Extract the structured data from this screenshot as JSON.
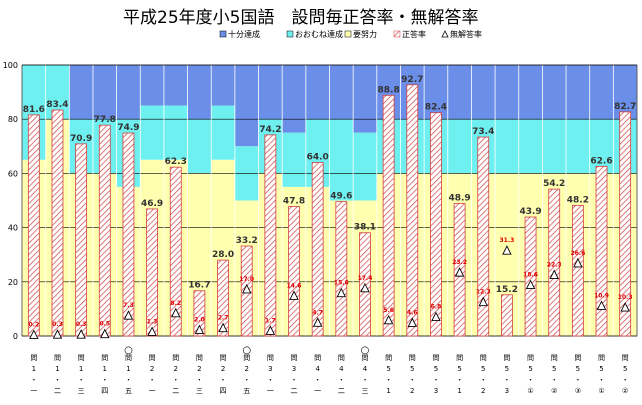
{
  "chart_data": {
    "type": "bar",
    "title": "平成25年度小5国語　設問毎正答率・無解答率",
    "ylim": [
      0,
      100
    ],
    "yticks": [
      0,
      20,
      40,
      60,
      80,
      100
    ],
    "grid": true,
    "legend_position": "top-right",
    "legend": [
      {
        "name": "十分達成",
        "color": "#6b8fe8",
        "marker": "square"
      },
      {
        "name": "おおむね達成",
        "color": "#6ff0f0",
        "marker": "square"
      },
      {
        "name": "要努力",
        "color": "#ffffb0",
        "marker": "square"
      },
      {
        "name": "正答率",
        "color": "#d04040",
        "marker": "hatch"
      },
      {
        "name": "無解答率",
        "color": "#000000",
        "marker": "triangle"
      }
    ],
    "categories": [
      [
        "問",
        "1",
        "・",
        "一"
      ],
      [
        "問",
        "1",
        "・",
        "二"
      ],
      [
        "問",
        "1",
        "・",
        "三"
      ],
      [
        "問",
        "1",
        "・",
        "四"
      ],
      [
        "問",
        "1",
        "・",
        "五"
      ],
      [
        "問",
        "2",
        "・",
        "一"
      ],
      [
        "問",
        "2",
        "・",
        "二"
      ],
      [
        "問",
        "2",
        "・",
        "三"
      ],
      [
        "問",
        "2",
        "・",
        "四"
      ],
      [
        "問",
        "2",
        "・",
        "五"
      ],
      [
        "問",
        "3",
        "・",
        "一"
      ],
      [
        "問",
        "3",
        "・",
        "二"
      ],
      [
        "問",
        "4",
        "・",
        "一"
      ],
      [
        "問",
        "4",
        "・",
        "二"
      ],
      [
        "問",
        "4",
        "・",
        "三"
      ],
      [
        "問",
        "5",
        "・",
        "1"
      ],
      [
        "問",
        "5",
        "・",
        "2"
      ],
      [
        "問",
        "5",
        "・",
        "3"
      ],
      [
        "問",
        "5",
        "・",
        "1"
      ],
      [
        "問",
        "5",
        "・",
        "2"
      ],
      [
        "問",
        "5",
        "・",
        "3"
      ],
      [
        "問",
        "5",
        "・",
        "①"
      ],
      [
        "問",
        "5",
        "・",
        "②"
      ],
      [
        "問",
        "5",
        "・",
        "③"
      ],
      [
        "問",
        "5",
        "・",
        "①"
      ],
      [
        "問",
        "5",
        "・",
        "②"
      ]
    ],
    "circle_marks": [
      4,
      9,
      14
    ],
    "circle_symbol": "○",
    "bands": {
      "yodoryoku_top": [
        65,
        80,
        60,
        60,
        55,
        65,
        65,
        60,
        65,
        50,
        60,
        55,
        55,
        50,
        50,
        60,
        60,
        60,
        60,
        60,
        60,
        60,
        60,
        60,
        60,
        60
      ],
      "oomune_top": [
        100,
        100,
        80,
        80,
        80,
        85,
        85,
        80,
        85,
        70,
        80,
        75,
        80,
        80,
        75,
        80,
        80,
        80,
        80,
        80,
        80,
        80,
        80,
        80,
        80,
        80
      ]
    },
    "series": [
      {
        "name": "正答率",
        "values": [
          81.6,
          83.4,
          70.9,
          77.8,
          74.9,
          46.9,
          62.3,
          16.7,
          28.0,
          33.2,
          74.2,
          47.8,
          64.0,
          49.6,
          38.1,
          88.8,
          92.7,
          82.4,
          48.9,
          73.4,
          15.2,
          43.9,
          54.2,
          48.2,
          62.6,
          82.7
        ],
        "labels": [
          "81.6",
          "83.4",
          "70.9",
          "77.8",
          "74.9",
          "46.9",
          "62.3",
          "16.7",
          "28.0",
          "33.2",
          "74.2",
          "47.8",
          "64.0",
          "49.6",
          "38.1",
          "88.8",
          "92.7",
          "82.4",
          "48.9",
          "73.4",
          "15.2",
          "43.9",
          "54.2",
          "48.2",
          "62.6",
          "82.7"
        ]
      },
      {
        "name": "無解答率",
        "values": [
          0.2,
          0.3,
          0.3,
          0.5,
          7.3,
          1.3,
          8.2,
          2.0,
          2.7,
          17.0,
          1.7,
          14.6,
          4.7,
          15.6,
          17.4,
          5.6,
          4.6,
          6.8,
          23.2,
          12.3,
          31.3,
          18.6,
          22.3,
          26.6,
          10.9,
          10.3
        ],
        "labels": [
          "0.2",
          "0.3",
          "0.3",
          "0.5",
          "7.3",
          "1.3",
          "8.2",
          "2.0",
          "2.7",
          "17.0",
          "1.7",
          "14.6",
          "4.7",
          "15.6",
          "17.4",
          "5.6",
          "4.6",
          "6.8",
          "23.2",
          "12.3",
          "31.3",
          "18.6",
          "22.3",
          "26.6",
          "10.9",
          "10.3"
        ]
      }
    ],
    "colors": {
      "juubun": "#6b8fe8",
      "oomune": "#6ff0f0",
      "yodoryoku": "#ffffb0",
      "seitou_stroke": "#d04040",
      "bar_fill": "#ffffff",
      "grid": "#000000"
    }
  }
}
